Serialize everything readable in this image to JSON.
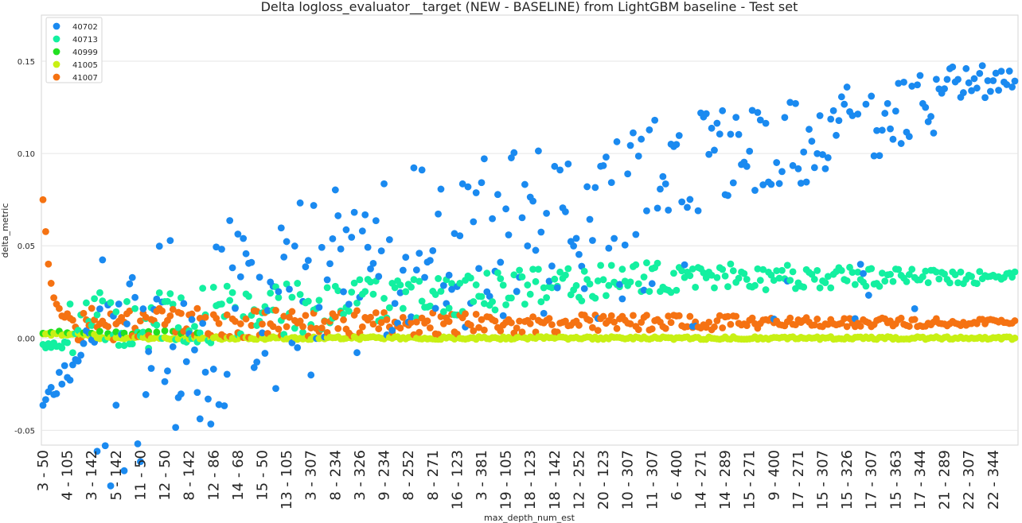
{
  "chart_data": {
    "type": "scatter",
    "title": "Delta logloss_evaluator__target (NEW - BASELINE) from LightGBM baseline - Test set",
    "xlabel": "max_depth_num_est",
    "ylabel": "delta_metric",
    "ylim": [
      -0.058,
      0.175
    ],
    "yticks": [
      -0.05,
      0.0,
      0.05,
      0.1,
      0.15
    ],
    "ytick_labels": [
      "-0.05",
      "0.00",
      "0.05",
      "0.10",
      "0.15"
    ],
    "n_points": 360,
    "x_tick_labels": [
      "3 - 50",
      "4 - 105",
      "3 - 142",
      "5 - 142",
      "11 - 50",
      "12 - 50",
      "8 - 142",
      "12 - 86",
      "14 - 68",
      "15 - 50",
      "13 - 105",
      "3 - 307",
      "8 - 234",
      "3 - 326",
      "9 - 234",
      "8 - 252",
      "8 - 271",
      "16 - 123",
      "3 - 381",
      "19 - 105",
      "18 - 123",
      "18 - 142",
      "12 - 252",
      "20 - 123",
      "10 - 307",
      "11 - 307",
      "6 - 400",
      "14 - 271",
      "14 - 289",
      "15 - 271",
      "9 - 400",
      "17 - 271",
      "15 - 307",
      "15 - 326",
      "17 - 307",
      "15 - 363",
      "17 - 344",
      "21 - 289",
      "22 - 307",
      "22 - 344"
    ],
    "x_tick_positions": [
      0,
      9,
      18,
      27,
      36,
      45,
      54,
      63,
      72,
      81,
      90,
      99,
      108,
      117,
      126,
      135,
      144,
      153,
      162,
      171,
      180,
      189,
      198,
      207,
      216,
      225,
      234,
      243,
      252,
      261,
      270,
      279,
      288,
      297,
      306,
      315,
      324,
      333,
      342,
      351
    ],
    "grid": true,
    "legend_position": "top-left",
    "series": [
      {
        "name": "40702",
        "color": "#1a8af0"
      },
      {
        "name": "40713",
        "color": "#13f0a0"
      },
      {
        "name": "40999",
        "color": "#22e022"
      },
      {
        "name": "41005",
        "color": "#c8f014"
      },
      {
        "name": "41007",
        "color": "#f57212"
      }
    ]
  }
}
